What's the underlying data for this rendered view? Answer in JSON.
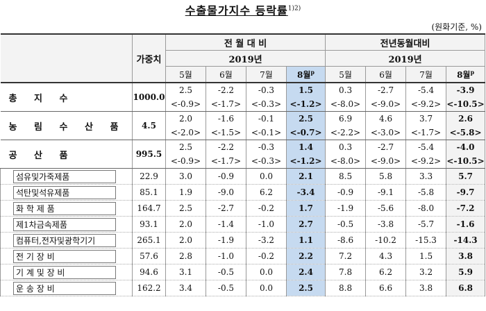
{
  "title": "수출물가지수 등락률",
  "title_note": "1)2)",
  "unit": "(원화기준, %)",
  "header": {
    "weight": "가중치",
    "mom": "전 월 대 비",
    "yoy": "전년동월대비",
    "year": "2019년",
    "months": [
      "5월",
      "6월",
      "7월",
      "8월"
    ],
    "prelim": "p"
  },
  "rows": [
    {
      "label": "총 지 수",
      "weight": "1000.0",
      "mom": [
        "2.5",
        "-2.2",
        "-0.3",
        "1.5"
      ],
      "mom_sub": [
        "<-0.9>",
        "<-1.7>",
        "<-0.3>",
        "<-1.2>"
      ],
      "yoy": [
        "0.3",
        "-2.7",
        "-5.4",
        "-3.9"
      ],
      "yoy_sub": [
        "<-8.0>",
        "<-9.0>",
        "<-9.2>",
        "<-10.5>"
      ]
    },
    {
      "label": "농 림 수 산 품",
      "weight": "4.5",
      "mom": [
        "2.0",
        "-1.6",
        "-0.1",
        "2.5"
      ],
      "mom_sub": [
        "<-2.0>",
        "<-1.5>",
        "<-0.1>",
        "<-0.7>"
      ],
      "yoy": [
        "6.9",
        "4.6",
        "3.7",
        "2.6"
      ],
      "yoy_sub": [
        "<-2.2>",
        "<-3.0>",
        "<-1.7>",
        "<-5.8>"
      ]
    },
    {
      "label": "공 산 품",
      "weight": "995.5",
      "mom": [
        "2.5",
        "-2.2",
        "-0.3",
        "1.4"
      ],
      "mom_sub": [
        "<-0.9>",
        "<-1.7>",
        "<-0.3>",
        "<-1.2>"
      ],
      "yoy": [
        "0.3",
        "-2.7",
        "-5.4",
        "-4.0"
      ],
      "yoy_sub": [
        "<-8.0>",
        "<-9.0>",
        "<-9.2>",
        "<-10.5>"
      ]
    }
  ],
  "subrows": [
    {
      "label": "섬유및가죽제품",
      "weight": "22.9",
      "mom": [
        "3.0",
        "-0.9",
        "0.0",
        "2.1"
      ],
      "yoy": [
        "8.5",
        "5.8",
        "3.3",
        "5.7"
      ]
    },
    {
      "label": "석탄및석유제품",
      "weight": "85.1",
      "mom": [
        "1.9",
        "-9.0",
        "6.2",
        "-3.4"
      ],
      "yoy": [
        "-0.9",
        "-9.1",
        "-5.8",
        "-9.7"
      ]
    },
    {
      "label": "화 학 제 품",
      "weight": "164.7",
      "mom": [
        "2.5",
        "-2.7",
        "-0.2",
        "1.7"
      ],
      "yoy": [
        "-1.9",
        "-5.6",
        "-8.0",
        "-7.2"
      ]
    },
    {
      "label": "제1차금속제품",
      "weight": "93.1",
      "mom": [
        "2.0",
        "-1.4",
        "-1.0",
        "2.7"
      ],
      "yoy": [
        "-0.5",
        "-3.8",
        "-5.7",
        "-1.6"
      ]
    },
    {
      "label": "컴퓨터,전자및광학기기",
      "weight": "265.1",
      "mom": [
        "2.0",
        "-1.9",
        "-3.2",
        "1.1"
      ],
      "yoy": [
        "-8.6",
        "-10.2",
        "-15.3",
        "-14.3"
      ]
    },
    {
      "label": "전 기 장 비",
      "weight": "57.6",
      "mom": [
        "2.8",
        "-1.0",
        "-0.2",
        "2.2"
      ],
      "yoy": [
        "7.2",
        "4.3",
        "1.5",
        "3.8"
      ]
    },
    {
      "label": "기 계 및 장 비",
      "weight": "94.6",
      "mom": [
        "3.1",
        "-0.5",
        "0.0",
        "2.4"
      ],
      "yoy": [
        "7.8",
        "6.2",
        "3.2",
        "5.9"
      ]
    },
    {
      "label": "운 송 장 비",
      "weight": "162.2",
      "mom": [
        "3.4",
        "-0.5",
        "0.0",
        "2.5"
      ],
      "yoy": [
        "8.8",
        "6.6",
        "3.8",
        "6.8"
      ]
    }
  ]
}
